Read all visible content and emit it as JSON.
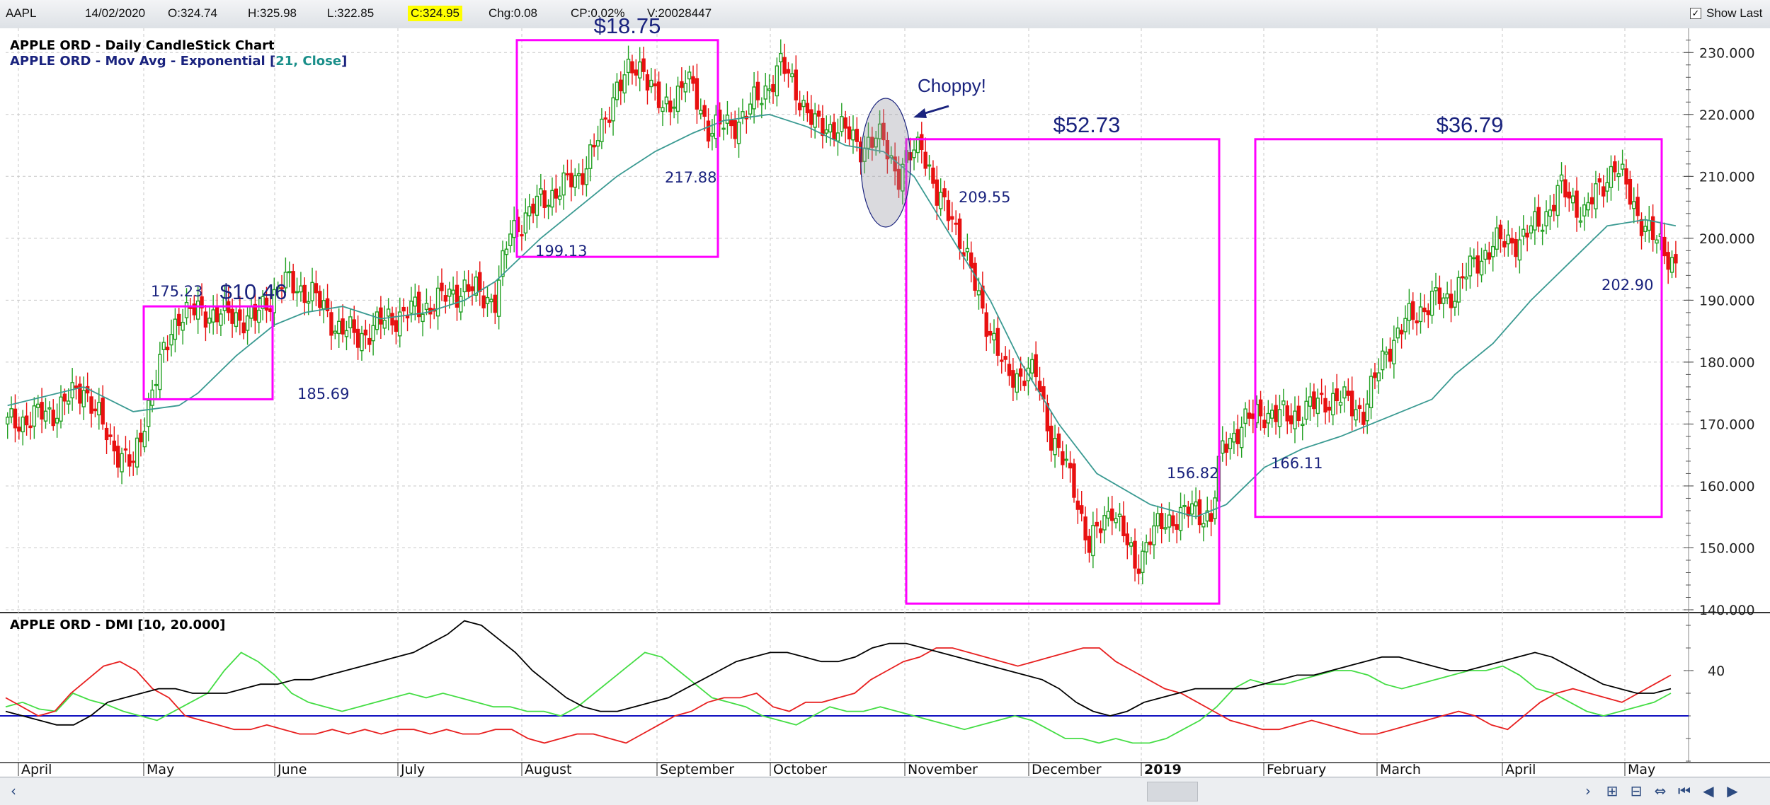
{
  "toolbar": {
    "symbol": "AAPL",
    "date": "14/02/2020",
    "open": "O:324.74",
    "high": "H:325.98",
    "low": "L:322.85",
    "close": "C:324.95",
    "change": "Chg:0.08",
    "change_pct": "CP:0.02%",
    "volume": "V:20028447",
    "show_last_label": "Show Last",
    "show_last_checked": "✓"
  },
  "price_pane": {
    "legend_line1": "APPLE ORD - Daily CandleStick Chart",
    "legend_line2_prefix": "APPLE ORD - Mov Avg - Exponential [",
    "legend_line2_params": "21, Close",
    "legend_line2_suffix": "]"
  },
  "dmi_pane": {
    "legend": "APPLE ORD - DMI [10, 20.000]"
  },
  "colors": {
    "up_candle": "#22a022",
    "down_candle": "#e81010",
    "ema": "#3a9a92",
    "box": "#ff00ff",
    "annotation": "#1a237e",
    "dmi_plus": "#44dd44",
    "dmi_minus": "#e82020",
    "adx": "#000000",
    "dmi_threshold": "#1010c0"
  },
  "chart_data": [
    {
      "type": "candlestick",
      "title": "APPLE ORD - Daily CandleStick Chart",
      "y_axis_side": "right",
      "ylim": [
        140,
        233
      ],
      "y_ticks": [
        "140.000",
        "150.000",
        "160.000",
        "170.000",
        "180.000",
        "190.000",
        "200.000",
        "210.000",
        "220.000",
        "230.000"
      ],
      "x_ticks": [
        "April",
        "May",
        "June",
        "July",
        "August",
        "September",
        "October",
        "November",
        "December",
        "2019",
        "February",
        "March",
        "April",
        "May"
      ],
      "grid": true,
      "ema_anchor_points": [
        [
          0,
          173
        ],
        [
          20,
          176
        ],
        [
          33,
          172
        ],
        [
          45,
          173
        ],
        [
          50,
          175
        ],
        [
          60,
          181
        ],
        [
          70,
          186
        ],
        [
          78,
          188
        ],
        [
          88,
          189
        ],
        [
          98,
          187
        ],
        [
          110,
          188
        ],
        [
          120,
          190
        ],
        [
          128,
          193
        ],
        [
          140,
          200
        ],
        [
          150,
          205
        ],
        [
          160,
          210
        ],
        [
          170,
          214
        ],
        [
          180,
          217
        ],
        [
          188,
          219
        ],
        [
          200,
          220
        ],
        [
          210,
          218
        ],
        [
          220,
          215
        ],
        [
          230,
          214
        ],
        [
          238,
          210
        ],
        [
          248,
          200
        ],
        [
          258,
          190
        ],
        [
          266,
          180
        ],
        [
          276,
          170
        ],
        [
          286,
          162
        ],
        [
          300,
          157
        ],
        [
          312,
          155
        ],
        [
          320,
          157
        ],
        [
          330,
          163
        ],
        [
          340,
          166
        ],
        [
          350,
          168
        ],
        [
          362,
          171
        ],
        [
          374,
          174
        ],
        [
          380,
          178
        ],
        [
          390,
          183
        ],
        [
          400,
          190
        ],
        [
          410,
          196
        ],
        [
          420,
          202
        ],
        [
          430,
          203
        ],
        [
          438,
          202
        ]
      ],
      "close_anchor_points": [
        [
          0,
          170
        ],
        [
          12,
          172
        ],
        [
          20,
          176
        ],
        [
          27,
          167
        ],
        [
          33,
          163
        ],
        [
          38,
          176
        ],
        [
          45,
          188
        ],
        [
          52,
          188
        ],
        [
          65,
          187
        ],
        [
          72,
          193
        ],
        [
          80,
          191
        ],
        [
          86,
          186
        ],
        [
          92,
          184
        ],
        [
          100,
          187
        ],
        [
          110,
          189
        ],
        [
          120,
          192
        ],
        [
          128,
          190
        ],
        [
          132,
          201
        ],
        [
          140,
          206
        ],
        [
          150,
          210
        ],
        [
          156,
          217
        ],
        [
          160,
          225
        ],
        [
          167,
          228
        ],
        [
          172,
          220
        ],
        [
          178,
          226
        ],
        [
          184,
          218
        ],
        [
          190,
          218
        ],
        [
          198,
          223
        ],
        [
          203,
          228
        ],
        [
          207,
          224
        ],
        [
          212,
          218
        ],
        [
          218,
          218
        ],
        [
          224,
          215
        ],
        [
          230,
          216
        ],
        [
          234,
          210
        ],
        [
          240,
          216
        ],
        [
          244,
          206
        ],
        [
          248,
          204
        ],
        [
          252,
          196
        ],
        [
          258,
          185
        ],
        [
          262,
          178
        ],
        [
          270,
          178
        ],
        [
          274,
          168
        ],
        [
          280,
          160
        ],
        [
          284,
          150
        ],
        [
          290,
          157
        ],
        [
          296,
          147
        ],
        [
          300,
          152
        ],
        [
          306,
          155
        ],
        [
          312,
          156
        ],
        [
          316,
          155
        ],
        [
          319,
          166
        ],
        [
          324,
          170
        ],
        [
          330,
          172
        ],
        [
          336,
          171
        ],
        [
          340,
          172
        ],
        [
          346,
          174
        ],
        [
          350,
          174
        ],
        [
          356,
          172
        ],
        [
          362,
          182
        ],
        [
          368,
          187
        ],
        [
          374,
          190
        ],
        [
          378,
          190
        ],
        [
          384,
          195
        ],
        [
          390,
          199
        ],
        [
          398,
          200
        ],
        [
          404,
          204
        ],
        [
          408,
          208
        ],
        [
          414,
          204
        ],
        [
          422,
          212
        ],
        [
          428,
          204
        ],
        [
          432,
          200
        ],
        [
          438,
          196
        ]
      ],
      "annotations": [
        {
          "text": "$10.46",
          "box_price_range": [
            174,
            189
          ]
        },
        {
          "text": "175.23",
          "kind": "price_label"
        },
        {
          "text": "185.69",
          "kind": "price_label"
        },
        {
          "text": "$18.75",
          "box_price_range": [
            197,
            232
          ]
        },
        {
          "text": "199.13",
          "kind": "price_label"
        },
        {
          "text": "217.88",
          "kind": "price_label"
        },
        {
          "text": "Choppy!",
          "kind": "callout"
        },
        {
          "text": "$52.73",
          "box_price_range": [
            141,
            216
          ]
        },
        {
          "text": "209.55",
          "kind": "price_label"
        },
        {
          "text": "156.82",
          "kind": "price_label"
        },
        {
          "text": "$36.79",
          "box_price_range": [
            155,
            216
          ]
        },
        {
          "text": "166.11",
          "kind": "price_label"
        },
        {
          "text": "202.90",
          "kind": "price_label"
        }
      ]
    },
    {
      "type": "line",
      "title": "APPLE ORD - DMI [10, 20.000]",
      "ylim": [
        0,
        65
      ],
      "y_ticks": [
        "40"
      ],
      "reference_line": 20,
      "series": [
        {
          "color_key": "dmi_plus",
          "values": [
            24,
            26,
            23,
            22,
            30,
            27,
            25,
            22,
            20,
            18,
            22,
            26,
            30,
            40,
            48,
            44,
            38,
            30,
            26,
            24,
            22,
            24,
            26,
            28,
            30,
            28,
            30,
            28,
            26,
            24,
            24,
            22,
            22,
            20,
            24,
            30,
            36,
            42,
            48,
            46,
            40,
            34,
            28,
            26,
            24,
            20,
            18,
            16,
            20,
            24,
            22,
            22,
            24,
            22,
            20,
            18,
            16,
            14,
            16,
            18,
            20,
            18,
            14,
            10,
            10,
            8,
            10,
            8,
            8,
            10,
            14,
            18,
            24,
            32,
            36,
            34,
            34,
            36,
            38,
            40,
            40,
            38,
            34,
            32,
            34,
            36,
            38,
            40,
            40,
            42,
            38,
            32,
            30,
            26,
            22,
            20,
            22,
            24,
            26,
            30
          ]
        },
        {
          "color_key": "dmi_minus",
          "values": [
            28,
            24,
            20,
            22,
            30,
            36,
            42,
            44,
            40,
            32,
            28,
            20,
            18,
            16,
            14,
            14,
            16,
            14,
            12,
            12,
            14,
            12,
            14,
            12,
            14,
            14,
            12,
            14,
            12,
            12,
            14,
            14,
            10,
            8,
            10,
            12,
            12,
            10,
            8,
            12,
            16,
            20,
            22,
            26,
            28,
            28,
            30,
            24,
            22,
            26,
            26,
            28,
            30,
            36,
            40,
            44,
            46,
            50,
            50,
            48,
            46,
            44,
            42,
            44,
            46,
            48,
            50,
            50,
            44,
            40,
            36,
            32,
            30,
            26,
            22,
            18,
            16,
            14,
            14,
            16,
            18,
            16,
            14,
            12,
            12,
            14,
            16,
            18,
            20,
            22,
            20,
            16,
            14,
            20,
            26,
            30,
            32,
            30,
            28,
            26,
            30,
            34,
            38
          ]
        },
        {
          "color_key": "adx",
          "values": [
            22,
            20,
            18,
            16,
            16,
            20,
            26,
            28,
            30,
            32,
            32,
            30,
            30,
            30,
            32,
            34,
            34,
            36,
            36,
            38,
            40,
            42,
            44,
            46,
            48,
            52,
            56,
            62,
            60,
            54,
            48,
            40,
            34,
            28,
            24,
            22,
            22,
            24,
            26,
            28,
            32,
            36,
            40,
            44,
            46,
            48,
            48,
            46,
            44,
            44,
            46,
            50,
            52,
            52,
            50,
            48,
            46,
            44,
            42,
            40,
            38,
            36,
            32,
            26,
            22,
            20,
            22,
            26,
            28,
            30,
            32,
            32,
            32,
            32,
            34,
            36,
            38,
            38,
            40,
            42,
            44,
            46,
            46,
            44,
            42,
            40,
            40,
            42,
            44,
            46,
            48,
            46,
            42,
            38,
            34,
            32,
            30,
            30,
            32
          ]
        }
      ]
    }
  ]
}
